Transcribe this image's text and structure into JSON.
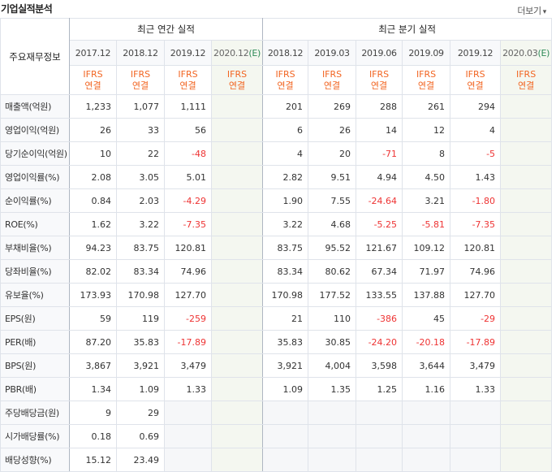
{
  "title": "기업실적분석",
  "more_label": "더보기",
  "more_arrow": "▾",
  "corner_label": "주요재무정보",
  "groups": {
    "annual": "최근 연간 실적",
    "quarterly": "최근 분기 실적"
  },
  "periods": {
    "annual": [
      "2017.12",
      "2018.12",
      "2019.12",
      "2020.12(E)"
    ],
    "quarterly": [
      "2018.12",
      "2019.03",
      "2019.06",
      "2019.09",
      "2019.12",
      "2020.03(E)"
    ]
  },
  "ifrs_label": "IFRS",
  "ifrs_sub": "연결",
  "rows": [
    {
      "label": "매출액(억원)",
      "annual": [
        "1,233",
        "1,077",
        "1,111",
        ""
      ],
      "quarterly": [
        "201",
        "269",
        "288",
        "261",
        "294",
        ""
      ]
    },
    {
      "label": "영업이익(억원)",
      "annual": [
        "26",
        "33",
        "56",
        ""
      ],
      "quarterly": [
        "6",
        "26",
        "14",
        "12",
        "4",
        ""
      ]
    },
    {
      "label": "당기순이익(억원)",
      "annual": [
        "10",
        "22",
        "-48",
        ""
      ],
      "quarterly": [
        "4",
        "20",
        "-71",
        "8",
        "-5",
        ""
      ]
    },
    {
      "label": "영업이익률(%)",
      "annual": [
        "2.08",
        "3.05",
        "5.01",
        ""
      ],
      "quarterly": [
        "2.82",
        "9.51",
        "4.94",
        "4.50",
        "1.43",
        ""
      ]
    },
    {
      "label": "순이익률(%)",
      "annual": [
        "0.84",
        "2.03",
        "-4.29",
        ""
      ],
      "quarterly": [
        "1.90",
        "7.55",
        "-24.64",
        "3.21",
        "-1.80",
        ""
      ]
    },
    {
      "label": "ROE(%)",
      "annual": [
        "1.62",
        "3.22",
        "-7.35",
        ""
      ],
      "quarterly": [
        "3.22",
        "4.68",
        "-5.25",
        "-5.81",
        "-7.35",
        ""
      ]
    },
    {
      "label": "부채비율(%)",
      "annual": [
        "94.23",
        "83.75",
        "120.81",
        ""
      ],
      "quarterly": [
        "83.75",
        "95.52",
        "121.67",
        "109.12",
        "120.81",
        ""
      ]
    },
    {
      "label": "당좌비율(%)",
      "annual": [
        "82.02",
        "83.34",
        "74.96",
        ""
      ],
      "quarterly": [
        "83.34",
        "80.62",
        "67.34",
        "71.97",
        "74.96",
        ""
      ]
    },
    {
      "label": "유보율(%)",
      "annual": [
        "173.93",
        "170.98",
        "127.70",
        ""
      ],
      "quarterly": [
        "170.98",
        "177.52",
        "133.55",
        "137.88",
        "127.70",
        ""
      ]
    },
    {
      "label": "EPS(원)",
      "annual": [
        "59",
        "119",
        "-259",
        ""
      ],
      "quarterly": [
        "21",
        "110",
        "-386",
        "45",
        "-29",
        ""
      ]
    },
    {
      "label": "PER(배)",
      "annual": [
        "87.20",
        "35.83",
        "-17.89",
        ""
      ],
      "quarterly": [
        "35.83",
        "30.85",
        "-24.20",
        "-20.18",
        "-17.89",
        ""
      ]
    },
    {
      "label": "BPS(원)",
      "annual": [
        "3,867",
        "3,921",
        "3,479",
        ""
      ],
      "quarterly": [
        "3,921",
        "4,004",
        "3,598",
        "3,644",
        "3,479",
        ""
      ]
    },
    {
      "label": "PBR(배)",
      "annual": [
        "1.34",
        "1.09",
        "1.33",
        ""
      ],
      "quarterly": [
        "1.09",
        "1.35",
        "1.25",
        "1.16",
        "1.33",
        ""
      ]
    },
    {
      "label": "주당배당금(원)",
      "annual": [
        "9",
        "29",
        "",
        ""
      ],
      "quarterly": [
        "",
        "",
        "",
        "",
        "",
        ""
      ]
    },
    {
      "label": "시가배당률(%)",
      "annual": [
        "0.18",
        "0.69",
        "",
        ""
      ],
      "quarterly": [
        "",
        "",
        "",
        "",
        "",
        ""
      ]
    },
    {
      "label": "배당성향(%)",
      "annual": [
        "15.12",
        "23.49",
        "",
        ""
      ],
      "quarterly": [
        "",
        "",
        "",
        "",
        "",
        ""
      ]
    }
  ],
  "colors": {
    "negative": "#ee3333",
    "ifrs": "#f26522",
    "estimate_bg": "#f4f7f0"
  }
}
